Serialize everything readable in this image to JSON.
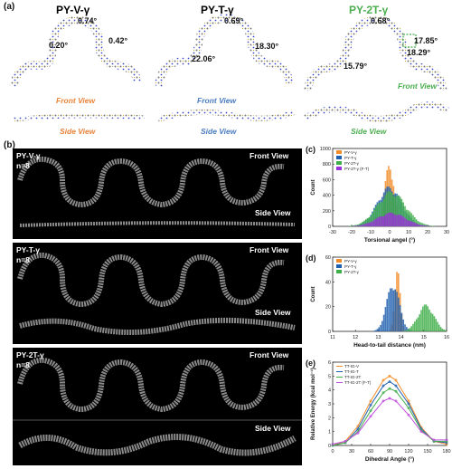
{
  "panel_a": {
    "label": "(a)",
    "molecules": [
      {
        "name": "PY-V-γ",
        "color": "#E8833A",
        "angles": [
          "0.74°",
          "0.42°",
          "0.20°"
        ],
        "front": "Front View",
        "side": "Side View"
      },
      {
        "name": "PY-T-γ",
        "color": "#4A7CC0",
        "angles": [
          "0.69°",
          "18.30°",
          "22.06°"
        ],
        "front": "Front View",
        "side": "Side View"
      },
      {
        "name": "PY-2T-γ",
        "color": "#4BAE4F",
        "angles": [
          "0.68°",
          "17.85°",
          "18.29°",
          "15.79°"
        ],
        "front": "Front View",
        "side": "Side View"
      }
    ]
  },
  "panel_b": {
    "label": "(b)",
    "panels": [
      {
        "name": "PY-V-γ",
        "n": "n=8",
        "front": "Front View",
        "side": "Side View"
      },
      {
        "name": "PY-T-γ",
        "n": "n=8",
        "front": "Front View",
        "side": "Side View"
      },
      {
        "name": "PY-2T-γ",
        "n": "n=8",
        "front": "Front View",
        "side": "Side View"
      }
    ]
  },
  "colors": {
    "pyv": "#F28C28",
    "pyt": "#1F5FAF",
    "py2t": "#3FAE49",
    "py2tft": "#9B30D9",
    "violet_line": "#C050E0"
  },
  "chart_data": [
    {
      "label": "(c)",
      "type": "bar",
      "xlabel": "Torsional angel (°)",
      "ylabel": "Count",
      "xlim": [
        -30,
        30
      ],
      "ylim": [
        0,
        1000
      ],
      "xticks": [
        "-30",
        "-20",
        "-10",
        "0",
        "10",
        "20",
        "30"
      ],
      "yticks": [
        "0",
        "200",
        "400",
        "600",
        "800",
        "1000"
      ],
      "legend": [
        "PY-V-γ",
        "PY-T-γ",
        "PY-2T-γ",
        "PY-2T-γ (F-T)"
      ],
      "legend_position": "top-left",
      "series": [
        {
          "name": "PY-V-γ",
          "center": 0,
          "spread": 2.6,
          "peak": 820
        },
        {
          "name": "PY-T-γ",
          "center": 0,
          "spread": 6.5,
          "peak": 520
        },
        {
          "name": "PY-2T-γ",
          "center": 1,
          "spread": 7.5,
          "peak": 460
        },
        {
          "name": "PY-2T-γ (F-T)",
          "center": 1,
          "spread": 7.5,
          "peak": 180
        }
      ]
    },
    {
      "label": "(d)",
      "type": "bar",
      "xlabel": "Head-to-tail distance (nm)",
      "ylabel": "Count",
      "xlim": [
        11,
        16
      ],
      "ylim": [
        0,
        60
      ],
      "xticks": [
        "11",
        "12",
        "13",
        "14",
        "15",
        "16"
      ],
      "yticks": [
        "0",
        "20",
        "40",
        "60"
      ],
      "legend": [
        "PY-V-γ",
        "PY-T-γ",
        "PY-2T-γ"
      ],
      "legend_position": "top-left",
      "series": [
        {
          "name": "PY-V-γ",
          "center": 13.85,
          "spread": 0.12,
          "peak": 50
        },
        {
          "name": "PY-T-γ",
          "center": 13.65,
          "spread": 0.28,
          "peak": 40
        },
        {
          "name": "PY-2T-γ",
          "center": 15.1,
          "spread": 0.35,
          "peak": 22
        }
      ]
    },
    {
      "label": "(e)",
      "type": "line",
      "xlabel": "Dihedral Angle (°)",
      "ylabel": "Relative Energy (kcal mol⁻¹)",
      "xlim": [
        0,
        180
      ],
      "ylim": [
        0,
        6
      ],
      "xticks": [
        "0",
        "30",
        "60",
        "90",
        "120",
        "150",
        "180"
      ],
      "yticks": [
        "0",
        "1",
        "2",
        "3",
        "4",
        "5",
        "6"
      ],
      "legend": [
        "TT-IG-V",
        "TT-IG-T",
        "TT-IG-2T",
        "TT-IG-2T (F-T)"
      ],
      "legend_position": "top-left",
      "x": [
        0,
        20,
        40,
        60,
        80,
        90,
        100,
        120,
        140,
        160,
        180
      ],
      "series": [
        {
          "name": "TT-IG-V",
          "values": [
            0,
            0.3,
            1.4,
            3.2,
            4.7,
            5.0,
            4.7,
            3.2,
            1.3,
            0.3,
            0.1
          ]
        },
        {
          "name": "TT-IG-T",
          "values": [
            0,
            0.2,
            1.2,
            2.9,
            4.3,
            4.6,
            4.3,
            3.0,
            1.2,
            0.3,
            0.2
          ]
        },
        {
          "name": "TT-IG-2T",
          "values": [
            0,
            0.2,
            1.0,
            2.5,
            3.8,
            4.1,
            3.9,
            2.7,
            1.1,
            0.3,
            0.3
          ]
        },
        {
          "name": "TT-IG-2T (F-T)",
          "values": [
            0.1,
            0.3,
            0.9,
            2.1,
            3.2,
            3.4,
            3.2,
            2.2,
            1.0,
            0.4,
            0.4
          ]
        }
      ]
    }
  ]
}
